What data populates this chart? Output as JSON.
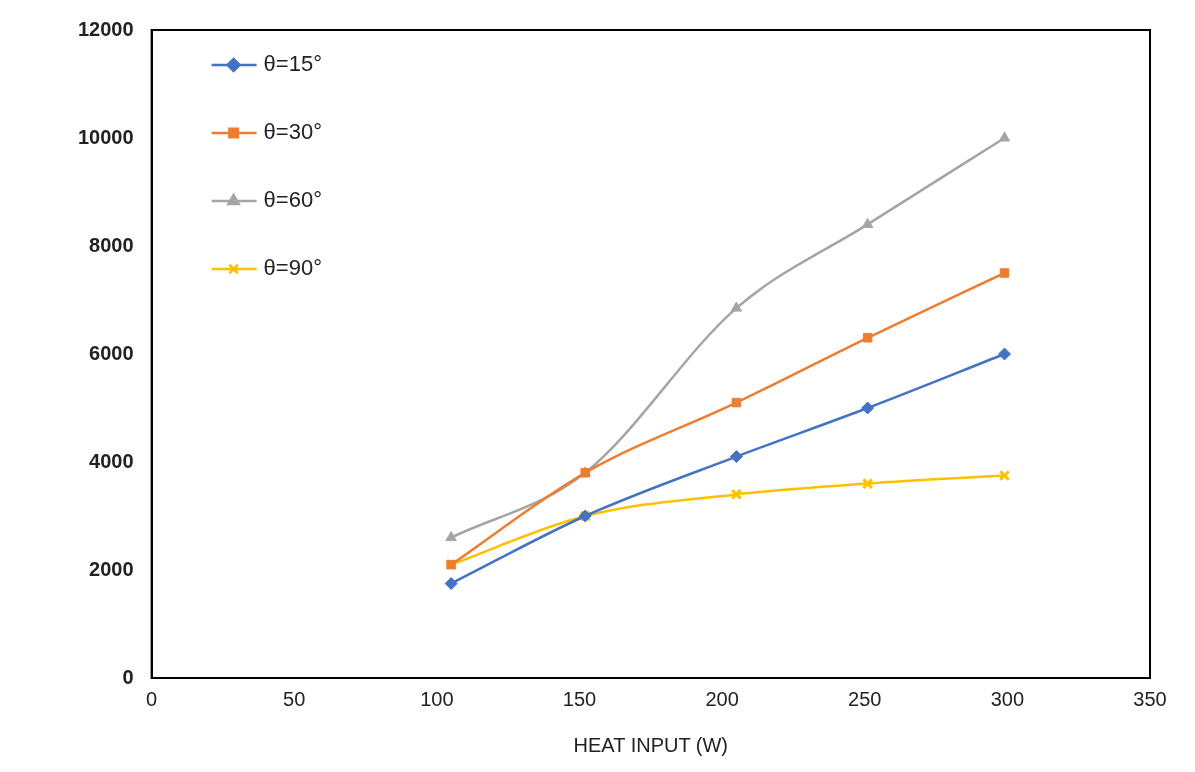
{
  "chart_data": {
    "type": "line",
    "xlabel": "HEAT INPUT (W)",
    "xlim": [
      0,
      350
    ],
    "xticks": [
      0,
      50,
      100,
      150,
      200,
      250,
      300,
      350
    ],
    "ylim": [
      0,
      12000
    ],
    "yticks": [
      0,
      2000,
      4000,
      6000,
      8000,
      10000,
      12000
    ],
    "grid": false,
    "legend": "top left",
    "line_style": "solid",
    "series": [
      {
        "name": "θ=15°",
        "color": "#4472c4",
        "marker": "diamond",
        "x": [
          105,
          152,
          205,
          251,
          299
        ],
        "values": [
          1750,
          3000,
          4100,
          5000,
          6000
        ]
      },
      {
        "name": "θ=30°",
        "color": "#ed7d31",
        "marker": "square",
        "x": [
          105,
          152,
          205,
          251,
          299
        ],
        "values": [
          2100,
          3800,
          5100,
          6300,
          7500
        ]
      },
      {
        "name": "θ=60°",
        "color": "#a5a5a5",
        "marker": "triangle",
        "x": [
          105,
          152,
          205,
          251,
          299
        ],
        "values": [
          2600,
          3800,
          6850,
          8400,
          10000
        ]
      },
      {
        "name": "θ=90°",
        "color": "#ffc000",
        "marker": "cross",
        "x": [
          105,
          152,
          205,
          251,
          299
        ],
        "values": [
          2100,
          3000,
          3400,
          3600,
          3750
        ]
      }
    ]
  }
}
